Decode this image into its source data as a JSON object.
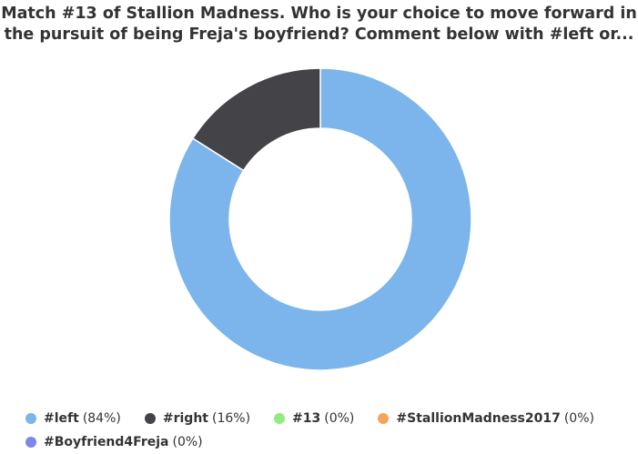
{
  "chart_data": {
    "type": "pie",
    "donut": true,
    "title_lines": [
      "Match #13 of Stallion Madness. Who is your choice to move forward in",
      "the pursuit of being Freja's boyfriend? Comment below with #left or..."
    ],
    "categories": [
      "#left",
      "#right",
      "#13",
      "#StallionMadness2017",
      "#Boyfriend4Freja"
    ],
    "values": [
      84,
      16,
      0,
      0,
      0
    ],
    "percent_labels": [
      "(84%)",
      "(16%)",
      "(0%)",
      "(0%)",
      "(0%)"
    ],
    "colors": [
      "#7cb5ec",
      "#434348",
      "#90ed7d",
      "#f7a35c",
      "#8085e9"
    ],
    "legend_position": "bottom"
  }
}
